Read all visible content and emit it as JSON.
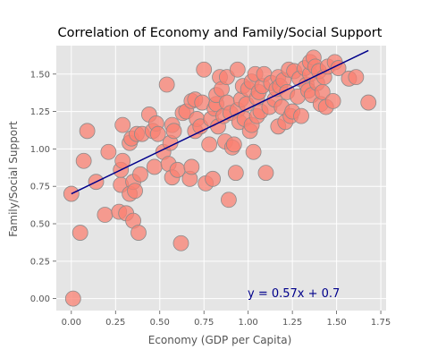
{
  "chart_data": {
    "type": "scatter",
    "title": "Correlation of Economy and Family/Social Support",
    "xlabel": "Economy (GDP per Capita)",
    "ylabel": "Family/Social Support",
    "xlim": [
      -0.085,
      1.78
    ],
    "ylim": [
      -0.08,
      1.69
    ],
    "xticks": [
      "0.00",
      "0.25",
      "0.50",
      "0.75",
      "1.00",
      "1.25",
      "1.50",
      "1.75"
    ],
    "yticks": [
      "0.00",
      "0.25",
      "0.50",
      "0.75",
      "1.00",
      "1.25",
      "1.50"
    ],
    "grid": true,
    "background_color": "#e5e5e5",
    "point_color": "#fa8072",
    "point_edge_color": "#8c8c8c",
    "line_color": "#00008b",
    "annotation_color": "#00008b",
    "annotation": "y = 0.57x + 0.7",
    "regression": {
      "slope": 0.57,
      "intercept": 0.7,
      "x_range": [
        0.0,
        1.68
      ]
    },
    "points": [
      [
        0.0,
        0.7
      ],
      [
        0.01,
        0.0
      ],
      [
        0.05,
        0.44
      ],
      [
        0.07,
        0.92
      ],
      [
        0.09,
        1.12
      ],
      [
        0.14,
        0.78
      ],
      [
        0.19,
        0.56
      ],
      [
        0.21,
        0.98
      ],
      [
        0.27,
        0.58
      ],
      [
        0.28,
        0.76
      ],
      [
        0.28,
        0.86
      ],
      [
        0.29,
        0.92
      ],
      [
        0.29,
        1.16
      ],
      [
        0.31,
        0.57
      ],
      [
        0.33,
        0.7
      ],
      [
        0.33,
        1.04
      ],
      [
        0.34,
        1.07
      ],
      [
        0.35,
        0.52
      ],
      [
        0.35,
        0.78
      ],
      [
        0.36,
        0.72
      ],
      [
        0.37,
        1.1
      ],
      [
        0.38,
        0.44
      ],
      [
        0.39,
        0.83
      ],
      [
        0.4,
        1.1
      ],
      [
        0.44,
        1.23
      ],
      [
        0.46,
        1.12
      ],
      [
        0.47,
        0.88
      ],
      [
        0.48,
        1.17
      ],
      [
        0.49,
        1.1
      ],
      [
        0.52,
        0.98
      ],
      [
        0.54,
        1.43
      ],
      [
        0.55,
        0.9
      ],
      [
        0.56,
        1.04
      ],
      [
        0.57,
        0.81
      ],
      [
        0.57,
        1.16
      ],
      [
        0.58,
        1.12
      ],
      [
        0.6,
        0.86
      ],
      [
        0.62,
        0.37
      ],
      [
        0.63,
        1.24
      ],
      [
        0.65,
        1.25
      ],
      [
        0.67,
        0.8
      ],
      [
        0.68,
        0.88
      ],
      [
        0.68,
        1.32
      ],
      [
        0.7,
        1.12
      ],
      [
        0.7,
        1.33
      ],
      [
        0.71,
        1.2
      ],
      [
        0.73,
        1.15
      ],
      [
        0.74,
        1.31
      ],
      [
        0.75,
        1.53
      ],
      [
        0.76,
        0.77
      ],
      [
        0.78,
        1.03
      ],
      [
        0.79,
        1.2
      ],
      [
        0.8,
        0.8
      ],
      [
        0.81,
        1.27
      ],
      [
        0.82,
        1.3
      ],
      [
        0.82,
        1.36
      ],
      [
        0.83,
        1.15
      ],
      [
        0.84,
        1.48
      ],
      [
        0.85,
        1.4
      ],
      [
        0.86,
        1.22
      ],
      [
        0.87,
        1.05
      ],
      [
        0.88,
        1.48
      ],
      [
        0.88,
        1.31
      ],
      [
        0.89,
        0.66
      ],
      [
        0.9,
        1.24
      ],
      [
        0.91,
        1.01
      ],
      [
        0.92,
        1.03
      ],
      [
        0.93,
        0.84
      ],
      [
        0.94,
        1.26
      ],
      [
        0.94,
        1.53
      ],
      [
        0.95,
        1.18
      ],
      [
        0.96,
        1.33
      ],
      [
        0.97,
        1.42
      ],
      [
        0.98,
        1.2
      ],
      [
        0.99,
        1.3
      ],
      [
        1.0,
        1.4
      ],
      [
        1.01,
        1.12
      ],
      [
        1.02,
        1.16
      ],
      [
        1.02,
        1.45
      ],
      [
        1.03,
        0.98
      ],
      [
        1.04,
        1.5
      ],
      [
        1.05,
        1.22
      ],
      [
        1.05,
        1.34
      ],
      [
        1.06,
        1.38
      ],
      [
        1.07,
        1.25
      ],
      [
        1.08,
        1.42
      ],
      [
        1.09,
        1.5
      ],
      [
        1.1,
        0.84
      ],
      [
        1.12,
        1.28
      ],
      [
        1.13,
        1.44
      ],
      [
        1.15,
        1.33
      ],
      [
        1.16,
        1.4
      ],
      [
        1.17,
        1.15
      ],
      [
        1.17,
        1.48
      ],
      [
        1.18,
        1.42
      ],
      [
        1.19,
        1.28
      ],
      [
        1.2,
        1.46
      ],
      [
        1.21,
        1.18
      ],
      [
        1.22,
        1.38
      ],
      [
        1.23,
        1.53
      ],
      [
        1.24,
        1.22
      ],
      [
        1.25,
        1.25
      ],
      [
        1.26,
        1.52
      ],
      [
        1.28,
        1.35
      ],
      [
        1.29,
        1.47
      ],
      [
        1.3,
        1.22
      ],
      [
        1.32,
        1.54
      ],
      [
        1.33,
        1.43
      ],
      [
        1.34,
        1.39
      ],
      [
        1.35,
        1.5
      ],
      [
        1.35,
        1.58
      ],
      [
        1.36,
        1.36
      ],
      [
        1.37,
        1.61
      ],
      [
        1.38,
        1.55
      ],
      [
        1.39,
        1.44
      ],
      [
        1.4,
        1.52
      ],
      [
        1.41,
        1.3
      ],
      [
        1.42,
        1.38
      ],
      [
        1.43,
        1.48
      ],
      [
        1.44,
        1.28
      ],
      [
        1.45,
        1.55
      ],
      [
        1.48,
        1.32
      ],
      [
        1.49,
        1.58
      ],
      [
        1.51,
        1.54
      ],
      [
        1.57,
        1.47
      ],
      [
        1.61,
        1.48
      ],
      [
        1.68,
        1.31
      ]
    ]
  }
}
